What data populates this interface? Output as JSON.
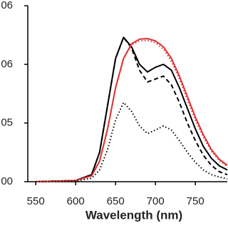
{
  "chart_data": {
    "type": "line",
    "x_label": "Wavelength (nm)",
    "x": [
      550,
      600,
      620,
      630,
      640,
      650,
      660,
      670,
      680,
      690,
      700,
      710,
      720,
      730,
      740,
      750,
      760,
      770,
      780,
      790
    ],
    "series": [
      {
        "color": "#000000",
        "style": "solid",
        "values": [
          0,
          0.02,
          0.12,
          0.5,
          1.3,
          2.1,
          2.46,
          2.3,
          2.0,
          1.87,
          1.95,
          2.0,
          1.9,
          1.6,
          1.25,
          0.9,
          0.6,
          0.4,
          0.27,
          0.2
        ]
      },
      {
        "color": "#000000",
        "style": "dashed",
        "values": [
          0,
          0.02,
          0.12,
          0.5,
          1.3,
          2.1,
          2.46,
          2.28,
          1.9,
          1.7,
          1.75,
          1.8,
          1.65,
          1.35,
          1.0,
          0.7,
          0.45,
          0.28,
          0.17,
          0.12
        ]
      },
      {
        "color": "#e03030",
        "style": "solid",
        "values": [
          0,
          0.02,
          0.1,
          0.35,
          0.9,
          1.6,
          2.1,
          2.35,
          2.43,
          2.44,
          2.4,
          2.3,
          2.1,
          1.8,
          1.45,
          1.1,
          0.8,
          0.55,
          0.38,
          0.28
        ]
      },
      {
        "color": "#e03030",
        "style": "dotted",
        "values": [
          0,
          0.02,
          0.1,
          0.35,
          0.9,
          1.6,
          2.1,
          2.33,
          2.4,
          2.41,
          2.37,
          2.26,
          2.05,
          1.75,
          1.4,
          1.05,
          0.76,
          0.52,
          0.36,
          0.26
        ]
      },
      {
        "color": "#000000",
        "style": "dotted",
        "values": [
          0,
          0.01,
          0.06,
          0.2,
          0.55,
          1.05,
          1.35,
          1.2,
          0.95,
          0.82,
          0.88,
          0.95,
          0.88,
          0.7,
          0.5,
          0.33,
          0.2,
          0.12,
          0.08,
          0.05
        ]
      }
    ],
    "xlim": [
      540,
      790
    ],
    "xticks": [
      550,
      600,
      650,
      700,
      750
    ],
    "ylim": [
      0,
      3
    ],
    "yticks": [
      {
        "value": 0,
        "label": "00"
      },
      {
        "value": 1,
        "label": "05"
      },
      {
        "value": 2,
        "label": "06"
      },
      {
        "value": 3,
        "label": "06"
      }
    ]
  }
}
